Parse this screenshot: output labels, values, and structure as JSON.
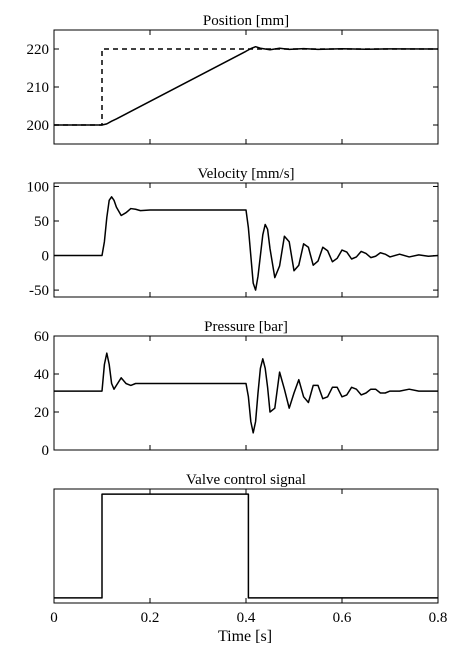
{
  "figure": {
    "xlabel": "Time [s]"
  },
  "chart_data": [
    {
      "type": "line",
      "title": "Position [mm]",
      "xlim": [
        0,
        0.8
      ],
      "ylim": [
        195,
        225
      ],
      "yticks": [
        200,
        210,
        220
      ],
      "xticks": [],
      "series": [
        {
          "style": "dashed",
          "x": [
            0,
            0.1,
            0.1,
            0.8
          ],
          "y": [
            200,
            200,
            220,
            220
          ]
        },
        {
          "style": "solid",
          "x": [
            0,
            0.1,
            0.11,
            0.12,
            0.13,
            0.4,
            0.41,
            0.42,
            0.43,
            0.45,
            0.47,
            0.49,
            0.52,
            0.55,
            0.6,
            0.65,
            0.7,
            0.8
          ],
          "y": [
            200,
            200,
            200.3,
            201.0,
            201.6,
            219.4,
            220.1,
            220.6,
            220.2,
            219.8,
            220.2,
            219.9,
            220.1,
            219.9,
            220.05,
            219.95,
            220.02,
            220
          ]
        }
      ]
    },
    {
      "type": "line",
      "title": "Velocity [mm/s]",
      "xlim": [
        0,
        0.8
      ],
      "ylim": [
        -60,
        105
      ],
      "yticks": [
        -50,
        0,
        50,
        100
      ],
      "xticks": [],
      "series": [
        {
          "style": "solid",
          "x": [
            0,
            0.1,
            0.105,
            0.11,
            0.115,
            0.12,
            0.125,
            0.13,
            0.14,
            0.15,
            0.16,
            0.17,
            0.18,
            0.2,
            0.22,
            0.25,
            0.3,
            0.35,
            0.4,
            0.405,
            0.41,
            0.415,
            0.42,
            0.425,
            0.43,
            0.435,
            0.44,
            0.445,
            0.45,
            0.46,
            0.47,
            0.48,
            0.49,
            0.5,
            0.51,
            0.52,
            0.53,
            0.54,
            0.55,
            0.56,
            0.57,
            0.58,
            0.59,
            0.6,
            0.61,
            0.62,
            0.63,
            0.64,
            0.65,
            0.66,
            0.67,
            0.68,
            0.69,
            0.7,
            0.72,
            0.74,
            0.76,
            0.78,
            0.8
          ],
          "y": [
            0,
            0,
            20,
            55,
            80,
            85,
            80,
            70,
            58,
            62,
            68,
            67,
            65,
            66,
            66,
            66,
            66,
            66,
            66,
            40,
            0,
            -40,
            -50,
            -30,
            0,
            30,
            45,
            38,
            10,
            -32,
            -15,
            28,
            20,
            -22,
            -14,
            17,
            12,
            -14,
            -8,
            12,
            7,
            -9,
            -4,
            8,
            5,
            -5,
            -2,
            6,
            3,
            -3,
            -1,
            4,
            2,
            -2,
            2,
            -2,
            1,
            -1,
            0
          ]
        }
      ]
    },
    {
      "type": "line",
      "title": "Pressure [bar]",
      "xlim": [
        0,
        0.8
      ],
      "ylim": [
        0,
        60
      ],
      "yticks": [
        0,
        20,
        40,
        60
      ],
      "xticks": [],
      "series": [
        {
          "style": "solid",
          "x": [
            0,
            0.1,
            0.105,
            0.11,
            0.115,
            0.12,
            0.125,
            0.13,
            0.14,
            0.15,
            0.16,
            0.17,
            0.18,
            0.2,
            0.25,
            0.3,
            0.35,
            0.4,
            0.405,
            0.41,
            0.415,
            0.42,
            0.425,
            0.43,
            0.435,
            0.44,
            0.445,
            0.45,
            0.46,
            0.47,
            0.48,
            0.49,
            0.5,
            0.51,
            0.52,
            0.53,
            0.54,
            0.55,
            0.56,
            0.57,
            0.58,
            0.59,
            0.6,
            0.61,
            0.62,
            0.63,
            0.64,
            0.65,
            0.66,
            0.67,
            0.68,
            0.69,
            0.7,
            0.72,
            0.74,
            0.76,
            0.78,
            0.8
          ],
          "y": [
            31,
            31,
            45,
            51,
            45,
            35,
            32,
            34,
            38,
            35,
            34,
            35,
            35,
            35,
            35,
            35,
            35,
            35,
            28,
            15,
            9,
            15,
            30,
            43,
            48,
            43,
            33,
            20,
            22,
            41,
            32,
            22,
            30,
            37,
            28,
            25,
            34,
            34,
            27,
            28,
            33,
            33,
            28,
            29,
            33,
            32,
            29,
            30,
            32,
            32,
            30,
            30,
            31,
            31,
            32,
            31,
            31,
            31
          ]
        }
      ]
    },
    {
      "type": "line",
      "title": "Valve control signal",
      "xlim": [
        0,
        0.8
      ],
      "ylim": [
        -0.05,
        1.05
      ],
      "yticks": [],
      "xticks": [
        0,
        0.2,
        0.4,
        0.6,
        0.8
      ],
      "series": [
        {
          "style": "solid",
          "x": [
            0,
            0.1,
            0.1,
            0.405,
            0.405,
            0.8
          ],
          "y": [
            0,
            0,
            1,
            1,
            0,
            0
          ]
        }
      ]
    }
  ]
}
